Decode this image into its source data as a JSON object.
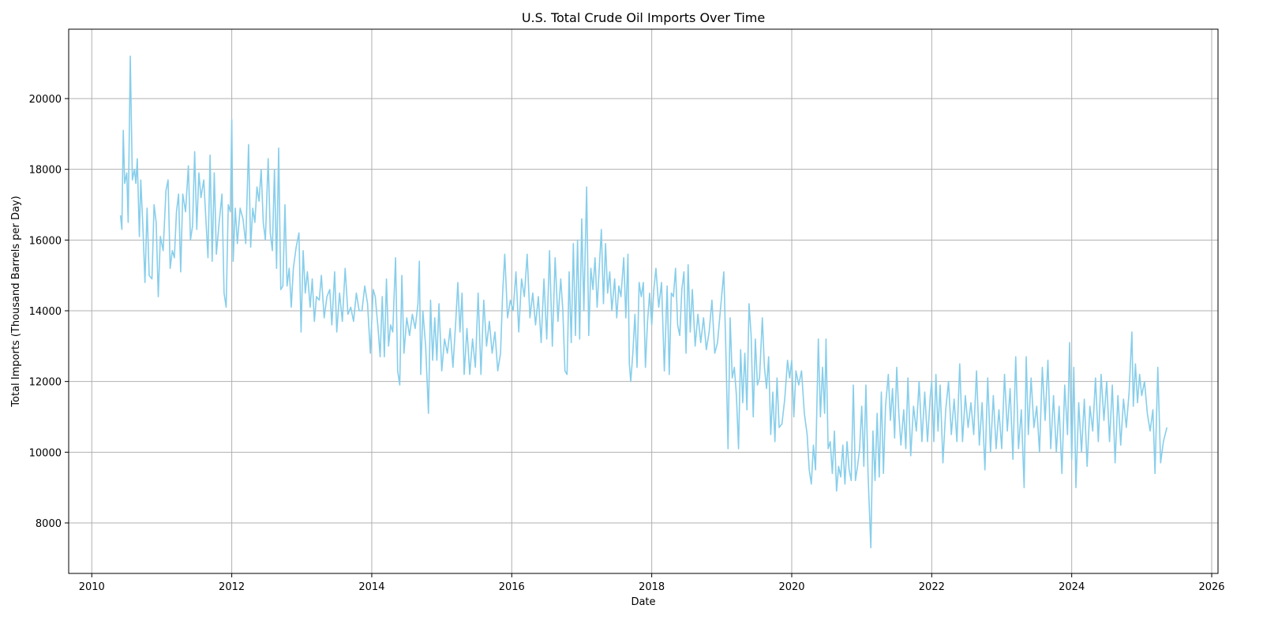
{
  "chart_data": {
    "type": "line",
    "title": "U.S. Total Crude Oil Imports Over Time",
    "x_label": "Date",
    "y_label": "Total Imports (Thousand Barrels per Day)",
    "color": "#87ceeb",
    "grid": true,
    "xlim": [
      2009.67,
      2026.09
    ],
    "ylim": [
      6572,
      21963
    ],
    "xticks": [
      2010,
      2012,
      2014,
      2016,
      2018,
      2020,
      2022,
      2024,
      2026
    ],
    "yticks": [
      8000,
      10000,
      12000,
      14000,
      16000,
      18000,
      20000
    ],
    "x": [
      2010.41,
      2010.43,
      2010.45,
      2010.47,
      2010.5,
      2010.52,
      2010.55,
      2010.58,
      2010.61,
      2010.63,
      2010.65,
      2010.68,
      2010.7,
      2010.73,
      2010.76,
      2010.79,
      2010.82,
      2010.86,
      2010.89,
      2010.92,
      2010.95,
      2010.98,
      2011.02,
      2011.06,
      2011.09,
      2011.12,
      2011.15,
      2011.18,
      2011.21,
      2011.24,
      2011.27,
      2011.3,
      2011.34,
      2011.38,
      2011.41,
      2011.44,
      2011.47,
      2011.5,
      2011.53,
      2011.56,
      2011.6,
      2011.63,
      2011.66,
      2011.69,
      2011.72,
      2011.75,
      2011.78,
      2011.82,
      2011.86,
      2011.89,
      2011.92,
      2011.95,
      2011.98,
      2012.0,
      2012.02,
      2012.05,
      2012.08,
      2012.12,
      2012.16,
      2012.2,
      2012.24,
      2012.27,
      2012.3,
      2012.33,
      2012.36,
      2012.39,
      2012.42,
      2012.45,
      2012.48,
      2012.52,
      2012.55,
      2012.58,
      2012.61,
      2012.64,
      2012.67,
      2012.7,
      2012.73,
      2012.76,
      2012.79,
      2012.82,
      2012.85,
      2012.88,
      2012.92,
      2012.96,
      2012.99,
      2013.02,
      2013.05,
      2013.08,
      2013.12,
      2013.15,
      2013.18,
      2013.21,
      2013.25,
      2013.28,
      2013.32,
      2013.36,
      2013.4,
      2013.43,
      2013.47,
      2013.5,
      2013.54,
      2013.58,
      2013.62,
      2013.66,
      2013.7,
      2013.74,
      2013.78,
      2013.82,
      2013.86,
      2013.9,
      2013.94,
      2013.98,
      2014.02,
      2014.05,
      2014.09,
      2014.12,
      2014.15,
      2014.18,
      2014.21,
      2014.24,
      2014.27,
      2014.3,
      2014.34,
      2014.37,
      2014.4,
      2014.43,
      2014.46,
      2014.5,
      2014.54,
      2014.58,
      2014.62,
      2014.66,
      2014.68,
      2014.7,
      2014.73,
      2014.77,
      2014.81,
      2014.84,
      2014.87,
      2014.9,
      2014.93,
      2014.96,
      2015.0,
      2015.04,
      2015.08,
      2015.12,
      2015.16,
      2015.2,
      2015.23,
      2015.26,
      2015.29,
      2015.32,
      2015.36,
      2015.4,
      2015.44,
      2015.48,
      2015.52,
      2015.56,
      2015.6,
      2015.64,
      2015.68,
      2015.72,
      2015.76,
      2015.8,
      2015.84,
      2015.87,
      2015.9,
      2015.94,
      2015.98,
      2016.02,
      2016.06,
      2016.1,
      2016.14,
      2016.18,
      2016.22,
      2016.26,
      2016.3,
      2016.34,
      2016.38,
      2016.42,
      2016.46,
      2016.5,
      2016.54,
      2016.58,
      2016.62,
      2016.66,
      2016.7,
      2016.73,
      2016.76,
      2016.79,
      2016.82,
      2016.85,
      2016.88,
      2016.91,
      2016.94,
      2016.97,
      2017.0,
      2017.03,
      2017.07,
      2017.1,
      2017.13,
      2017.16,
      2017.19,
      2017.22,
      2017.25,
      2017.28,
      2017.31,
      2017.34,
      2017.37,
      2017.4,
      2017.43,
      2017.47,
      2017.5,
      2017.53,
      2017.56,
      2017.6,
      2017.63,
      2017.66,
      2017.68,
      2017.7,
      2017.73,
      2017.76,
      2017.79,
      2017.82,
      2017.85,
      2017.88,
      2017.91,
      2017.94,
      2017.97,
      2018.0,
      2018.03,
      2018.06,
      2018.1,
      2018.14,
      2018.18,
      2018.22,
      2018.25,
      2018.28,
      2018.31,
      2018.34,
      2018.37,
      2018.4,
      2018.43,
      2018.46,
      2018.49,
      2018.52,
      2018.55,
      2018.58,
      2018.62,
      2018.66,
      2018.7,
      2018.74,
      2018.78,
      2018.82,
      2018.86,
      2018.9,
      2018.94,
      2018.98,
      2019.03,
      2019.06,
      2019.09,
      2019.12,
      2019.15,
      2019.18,
      2019.21,
      2019.24,
      2019.27,
      2019.3,
      2019.33,
      2019.36,
      2019.39,
      2019.42,
      2019.45,
      2019.48,
      2019.51,
      2019.54,
      2019.58,
      2019.61,
      2019.64,
      2019.67,
      2019.7,
      2019.73,
      2019.76,
      2019.79,
      2019.82,
      2019.86,
      2019.9,
      2019.94,
      2019.97,
      2020.0,
      2020.03,
      2020.06,
      2020.1,
      2020.14,
      2020.18,
      2020.22,
      2020.25,
      2020.28,
      2020.31,
      2020.34,
      2020.38,
      2020.41,
      2020.44,
      2020.47,
      2020.49,
      2020.52,
      2020.55,
      2020.58,
      2020.61,
      2020.64,
      2020.67,
      2020.7,
      2020.73,
      2020.76,
      2020.79,
      2020.82,
      2020.85,
      2020.88,
      2020.91,
      2020.94,
      2020.97,
      2021.0,
      2021.03,
      2021.06,
      2021.09,
      2021.13,
      2021.16,
      2021.19,
      2021.22,
      2021.25,
      2021.28,
      2021.31,
      2021.34,
      2021.38,
      2021.41,
      2021.44,
      2021.47,
      2021.5,
      2021.53,
      2021.56,
      2021.6,
      2021.63,
      2021.66,
      2021.7,
      2021.74,
      2021.78,
      2021.82,
      2021.86,
      2021.9,
      2021.94,
      2021.98,
      2022.0,
      2022.03,
      2022.06,
      2022.09,
      2022.12,
      2022.16,
      2022.2,
      2022.24,
      2022.28,
      2022.32,
      2022.36,
      2022.4,
      2022.44,
      2022.48,
      2022.52,
      2022.56,
      2022.6,
      2022.64,
      2022.68,
      2022.72,
      2022.76,
      2022.8,
      2022.84,
      2022.88,
      2022.92,
      2022.96,
      2023.0,
      2023.04,
      2023.08,
      2023.12,
      2023.16,
      2023.2,
      2023.24,
      2023.28,
      2023.32,
      2023.35,
      2023.38,
      2023.42,
      2023.46,
      2023.5,
      2023.54,
      2023.58,
      2023.62,
      2023.66,
      2023.7,
      2023.74,
      2023.78,
      2023.82,
      2023.86,
      2023.9,
      2023.94,
      2023.97,
      2024.0,
      2024.03,
      2024.06,
      2024.1,
      2024.14,
      2024.18,
      2024.22,
      2024.26,
      2024.3,
      2024.34,
      2024.38,
      2024.42,
      2024.46,
      2024.5,
      2024.54,
      2024.58,
      2024.62,
      2024.66,
      2024.7,
      2024.74,
      2024.78,
      2024.82,
      2024.86,
      2024.88,
      2024.91,
      2024.94,
      2024.97,
      2025.0,
      2025.04,
      2025.08,
      2025.12,
      2025.16,
      2025.19,
      2025.23,
      2025.27,
      2025.31,
      2025.36
    ],
    "values": [
      16700,
      16300,
      19100,
      17600,
      17900,
      16500,
      21200,
      17700,
      18000,
      17600,
      18300,
      16100,
      17700,
      16400,
      14800,
      16900,
      15000,
      14900,
      17000,
      16500,
      14400,
      16100,
      15700,
      17400,
      17700,
      15200,
      15700,
      15500,
      16800,
      17300,
      15100,
      17300,
      16800,
      18100,
      16000,
      16400,
      18500,
      16300,
      17900,
      17200,
      17700,
      16600,
      15500,
      18400,
      15400,
      17900,
      15600,
      16500,
      17300,
      14500,
      14100,
      17000,
      16800,
      19400,
      15400,
      16900,
      15900,
      16900,
      16600,
      15900,
      18700,
      15800,
      16900,
      16500,
      17500,
      17100,
      18000,
      16500,
      16000,
      18300,
      16200,
      15700,
      18000,
      15200,
      18600,
      14600,
      14700,
      17000,
      14700,
      15200,
      14100,
      15200,
      15800,
      16200,
      13400,
      15700,
      14500,
      15100,
      14100,
      14900,
      13700,
      14400,
      14300,
      15000,
      13800,
      14400,
      14600,
      13600,
      15100,
      13400,
      14500,
      13700,
      15200,
      13900,
      14100,
      13700,
      14500,
      14000,
      14000,
      14700,
      14200,
      12800,
      14600,
      14400,
      13500,
      12700,
      14400,
      12700,
      14900,
      13000,
      13600,
      13400,
      15500,
      12300,
      11900,
      15000,
      12800,
      13800,
      13300,
      13900,
      13500,
      14200,
      15400,
      12200,
      14000,
      13000,
      11100,
      14300,
      12600,
      13800,
      12600,
      14200,
      12300,
      13200,
      12800,
      13500,
      12400,
      13700,
      14800,
      13400,
      14500,
      12200,
      13500,
      12200,
      13200,
      12400,
      14500,
      12200,
      14300,
      13000,
      13700,
      12800,
      13400,
      12300,
      12800,
      14500,
      15600,
      13800,
      14300,
      14000,
      15100,
      13400,
      14900,
      14400,
      15600,
      13800,
      14500,
      13600,
      14400,
      13100,
      14900,
      13200,
      15700,
      13000,
      15500,
      13700,
      14900,
      14000,
      12300,
      12200,
      15100,
      13100,
      15900,
      13300,
      16000,
      13200,
      16600,
      14000,
      17500,
      13300,
      15200,
      14600,
      15500,
      14100,
      15200,
      16300,
      14200,
      15900,
      14500,
      15100,
      14000,
      14900,
      13800,
      14700,
      14400,
      15500,
      13800,
      15600,
      12500,
      12000,
      12800,
      13900,
      12400,
      14800,
      14400,
      14800,
      12400,
      13700,
      14500,
      13600,
      14600,
      15200,
      14100,
      14800,
      12300,
      14700,
      12200,
      14500,
      14400,
      15200,
      13600,
      13300,
      14600,
      15100,
      12800,
      15300,
      13400,
      14600,
      13000,
      13900,
      13100,
      13800,
      12900,
      13400,
      14300,
      12800,
      13100,
      14000,
      15100,
      12800,
      10100,
      13800,
      12100,
      12400,
      11600,
      10100,
      12900,
      11400,
      12800,
      11200,
      14200,
      13300,
      11000,
      13200,
      11900,
      12100,
      13800,
      12400,
      11800,
      12700,
      10500,
      11700,
      10300,
      12100,
      10700,
      10800,
      11500,
      12600,
      12100,
      12600,
      11000,
      12300,
      11900,
      12300,
      11100,
      10500,
      9500,
      9100,
      10200,
      9500,
      13200,
      11000,
      12400,
      11100,
      13200,
      10100,
      10300,
      9400,
      10600,
      8900,
      9600,
      9300,
      10200,
      9100,
      10300,
      9500,
      9200,
      11900,
      9200,
      9600,
      10100,
      11300,
      9600,
      11900,
      9400,
      7300,
      10600,
      9200,
      11100,
      9300,
      11700,
      9400,
      11300,
      12200,
      10900,
      11800,
      10400,
      12400,
      11100,
      10200,
      11200,
      10100,
      12100,
      9900,
      11300,
      10600,
      12000,
      10300,
      11700,
      10300,
      11600,
      12000,
      10300,
      12200,
      10600,
      11900,
      9700,
      11200,
      12000,
      10500,
      11500,
      10300,
      12500,
      10300,
      11600,
      10700,
      11400,
      10500,
      12300,
      10200,
      11400,
      9500,
      12100,
      10000,
      11600,
      10100,
      11200,
      10100,
      12200,
      10600,
      11800,
      9800,
      12700,
      10100,
      11200,
      9000,
      12700,
      10500,
      12100,
      10700,
      11300,
      10000,
      12400,
      10900,
      12600,
      10100,
      11600,
      10000,
      11300,
      9400,
      11900,
      10500,
      13100,
      9800,
      12400,
      9000,
      11400,
      10000,
      11500,
      9600,
      11300,
      10600,
      12100,
      10300,
      12200,
      10900,
      12000,
      10300,
      11900,
      9700,
      11600,
      10200,
      11500,
      10700,
      11700,
      13400,
      11300,
      12500,
      11400,
      12200,
      11600,
      12000,
      11100,
      10600,
      11200,
      9400,
      12400,
      9700,
      10300,
      10700
    ]
  }
}
